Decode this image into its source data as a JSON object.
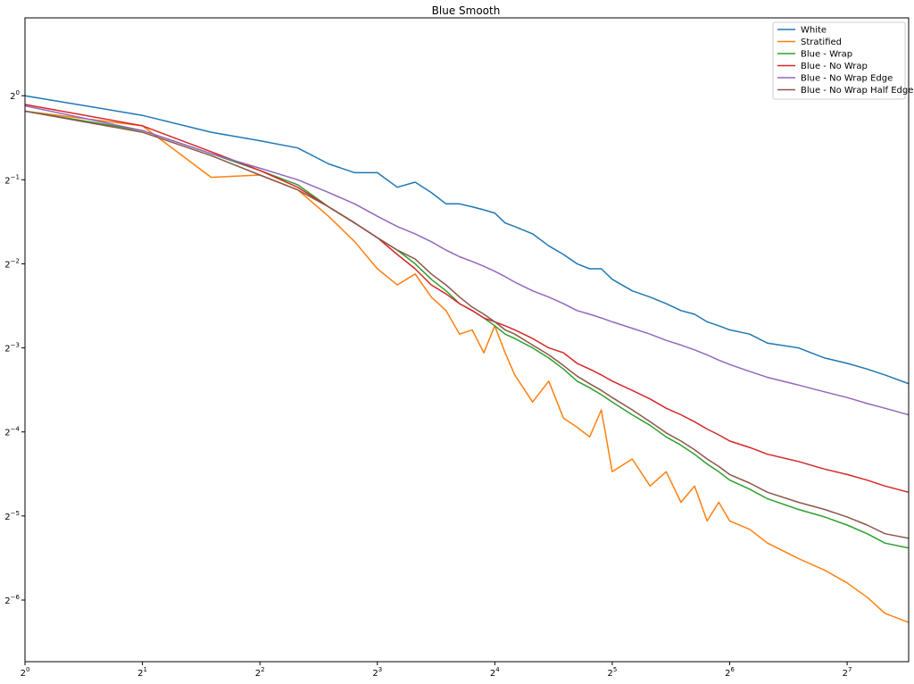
{
  "chart_data": {
    "type": "line",
    "title": "Blue Smooth",
    "xlabel": "",
    "ylabel": "",
    "xscale": "log2",
    "yscale": "log2",
    "xlim": [
      1,
      184
    ],
    "ylim": [
      0.0094,
      1.9
    ],
    "grid": false,
    "legend_position": "top-right",
    "x_ticks": [
      {
        "label": "2",
        "exp": "0",
        "value": 1
      },
      {
        "label": "2",
        "exp": "1",
        "value": 2
      },
      {
        "label": "2",
        "exp": "2",
        "value": 4
      },
      {
        "label": "2",
        "exp": "3",
        "value": 8
      },
      {
        "label": "2",
        "exp": "4",
        "value": 16
      },
      {
        "label": "2",
        "exp": "5",
        "value": 32
      },
      {
        "label": "2",
        "exp": "6",
        "value": 64
      },
      {
        "label": "2",
        "exp": "7",
        "value": 128
      }
    ],
    "y_ticks": [
      {
        "label": "2",
        "exp": "0",
        "value": 1
      },
      {
        "label": "2",
        "exp": "−1",
        "value": 0.5
      },
      {
        "label": "2",
        "exp": "−2",
        "value": 0.25
      },
      {
        "label": "2",
        "exp": "−3",
        "value": 0.125
      },
      {
        "label": "2",
        "exp": "−4",
        "value": 0.0625
      },
      {
        "label": "2",
        "exp": "−5",
        "value": 0.03125
      },
      {
        "label": "2",
        "exp": "−6",
        "value": 0.015625
      }
    ],
    "series": [
      {
        "name": "White",
        "color": "#1f77b4",
        "x": [
          1,
          2,
          3,
          4,
          5,
          6,
          7,
          8,
          9,
          10,
          11,
          12,
          13,
          14,
          15,
          16,
          17,
          18,
          20,
          22,
          24,
          26,
          28,
          30,
          32,
          36,
          40,
          44,
          48,
          52,
          56,
          60,
          64,
          72,
          80,
          96,
          112,
          128,
          144,
          160,
          184
        ],
        "y": [
          1.0,
          0.85,
          0.74,
          0.69,
          0.65,
          0.57,
          0.53,
          0.53,
          0.47,
          0.49,
          0.45,
          0.41,
          0.41,
          0.4,
          0.39,
          0.38,
          0.35,
          0.34,
          0.32,
          0.29,
          0.27,
          0.25,
          0.24,
          0.24,
          0.22,
          0.2,
          0.19,
          0.18,
          0.17,
          0.165,
          0.155,
          0.15,
          0.145,
          0.14,
          0.13,
          0.125,
          0.115,
          0.11,
          0.105,
          0.1,
          0.093
        ]
      },
      {
        "name": "Stratified",
        "color": "#ff7f0e",
        "x": [
          1,
          2,
          3,
          4,
          5,
          6,
          7,
          8,
          9,
          10,
          11,
          12,
          13,
          14,
          15,
          16,
          17,
          18,
          20,
          22,
          24,
          26,
          28,
          30,
          32,
          36,
          40,
          44,
          48,
          52,
          56,
          60,
          64,
          72,
          80,
          96,
          112,
          128,
          144,
          160,
          184
        ],
        "y": [
          0.88,
          0.78,
          0.51,
          0.52,
          0.46,
          0.37,
          0.3,
          0.24,
          0.21,
          0.23,
          0.19,
          0.17,
          0.14,
          0.145,
          0.12,
          0.15,
          0.12,
          0.1,
          0.08,
          0.095,
          0.07,
          0.065,
          0.06,
          0.075,
          0.045,
          0.05,
          0.04,
          0.045,
          0.035,
          0.04,
          0.03,
          0.035,
          0.03,
          0.028,
          0.025,
          0.022,
          0.02,
          0.018,
          0.016,
          0.014,
          0.013
        ]
      },
      {
        "name": "Blue - Wrap",
        "color": "#2ca02c",
        "x": [
          1,
          2,
          3,
          4,
          5,
          6,
          7,
          8,
          9,
          10,
          11,
          12,
          13,
          14,
          15,
          16,
          17,
          18,
          20,
          22,
          24,
          26,
          28,
          30,
          32,
          36,
          40,
          44,
          48,
          52,
          56,
          60,
          64,
          72,
          80,
          96,
          112,
          128,
          144,
          160,
          184
        ],
        "y": [
          0.88,
          0.75,
          0.62,
          0.54,
          0.48,
          0.4,
          0.35,
          0.31,
          0.28,
          0.25,
          0.22,
          0.2,
          0.18,
          0.17,
          0.16,
          0.15,
          0.14,
          0.135,
          0.125,
          0.115,
          0.105,
          0.095,
          0.09,
          0.085,
          0.08,
          0.072,
          0.066,
          0.06,
          0.056,
          0.052,
          0.048,
          0.045,
          0.042,
          0.039,
          0.036,
          0.033,
          0.031,
          0.029,
          0.027,
          0.025,
          0.024
        ]
      },
      {
        "name": "Blue - No Wrap",
        "color": "#d62728",
        "x": [
          1,
          2,
          3,
          4,
          5,
          6,
          7,
          8,
          9,
          10,
          11,
          12,
          13,
          14,
          15,
          16,
          17,
          18,
          20,
          22,
          24,
          26,
          28,
          30,
          32,
          36,
          40,
          44,
          48,
          52,
          56,
          60,
          64,
          72,
          80,
          96,
          112,
          128,
          144,
          160,
          184
        ],
        "y": [
          0.93,
          0.78,
          0.63,
          0.54,
          0.47,
          0.4,
          0.35,
          0.31,
          0.27,
          0.24,
          0.21,
          0.195,
          0.18,
          0.17,
          0.16,
          0.155,
          0.15,
          0.145,
          0.135,
          0.125,
          0.12,
          0.11,
          0.105,
          0.1,
          0.095,
          0.088,
          0.082,
          0.076,
          0.072,
          0.068,
          0.064,
          0.061,
          0.058,
          0.055,
          0.052,
          0.049,
          0.046,
          0.044,
          0.042,
          0.04,
          0.038
        ]
      },
      {
        "name": "Blue - No Wrap Edge",
        "color": "#9467bd",
        "x": [
          1,
          2,
          3,
          4,
          5,
          6,
          7,
          8,
          9,
          10,
          11,
          12,
          13,
          14,
          15,
          16,
          17,
          18,
          20,
          22,
          24,
          26,
          28,
          30,
          32,
          36,
          40,
          44,
          48,
          52,
          56,
          60,
          64,
          72,
          80,
          96,
          112,
          128,
          144,
          160,
          184
        ],
        "y": [
          0.92,
          0.75,
          0.62,
          0.55,
          0.5,
          0.45,
          0.41,
          0.37,
          0.34,
          0.32,
          0.3,
          0.28,
          0.265,
          0.255,
          0.245,
          0.235,
          0.225,
          0.215,
          0.2,
          0.19,
          0.18,
          0.17,
          0.165,
          0.16,
          0.155,
          0.147,
          0.14,
          0.133,
          0.128,
          0.123,
          0.118,
          0.113,
          0.109,
          0.103,
          0.098,
          0.092,
          0.087,
          0.083,
          0.079,
          0.076,
          0.072
        ]
      },
      {
        "name": "Blue - No Wrap Half Edge",
        "color": "#8c564b",
        "x": [
          1,
          2,
          3,
          4,
          5,
          6,
          7,
          8,
          9,
          10,
          11,
          12,
          13,
          14,
          15,
          16,
          17,
          18,
          20,
          22,
          24,
          26,
          28,
          30,
          32,
          36,
          40,
          44,
          48,
          52,
          56,
          60,
          64,
          72,
          80,
          96,
          112,
          128,
          144,
          160,
          184
        ],
        "y": [
          0.88,
          0.74,
          0.61,
          0.52,
          0.46,
          0.4,
          0.35,
          0.31,
          0.28,
          0.26,
          0.23,
          0.21,
          0.19,
          0.175,
          0.165,
          0.155,
          0.145,
          0.14,
          0.128,
          0.118,
          0.108,
          0.099,
          0.093,
          0.088,
          0.083,
          0.075,
          0.068,
          0.062,
          0.058,
          0.054,
          0.05,
          0.047,
          0.044,
          0.041,
          0.038,
          0.035,
          0.033,
          0.031,
          0.029,
          0.027,
          0.026
        ]
      }
    ]
  }
}
